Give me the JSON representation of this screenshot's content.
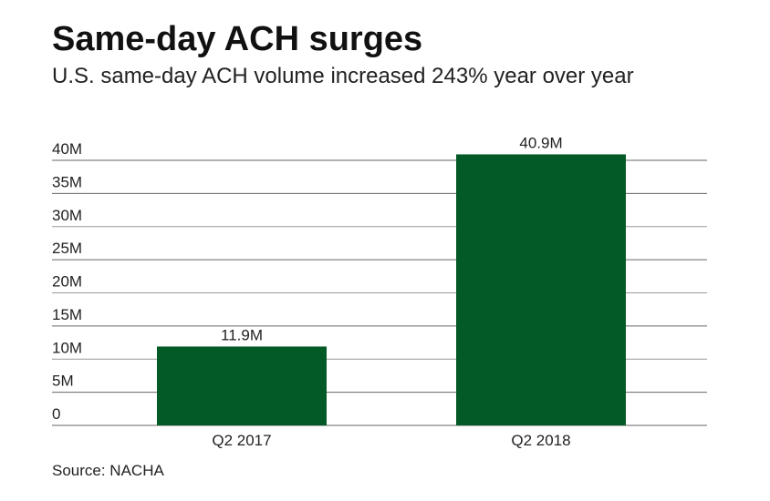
{
  "chart_data": {
    "type": "bar",
    "title": "Same-day ACH surges",
    "subtitle": "U.S. same-day ACH volume increased 243% year over year",
    "categories": [
      "Q2 2017",
      "Q2 2018"
    ],
    "values": [
      11.9,
      40.9
    ],
    "value_labels": [
      "11.9M",
      "40.9M"
    ],
    "unit": "M",
    "ylim": [
      0,
      40
    ],
    "yticks": [
      0,
      5,
      10,
      15,
      20,
      25,
      30,
      35,
      40
    ],
    "ytick_labels": [
      "0",
      "5M",
      "10M",
      "15M",
      "20M",
      "25M",
      "30M",
      "35M",
      "40M"
    ],
    "grid": true,
    "bar_color": "#045a27",
    "source": "Source: NACHA"
  }
}
